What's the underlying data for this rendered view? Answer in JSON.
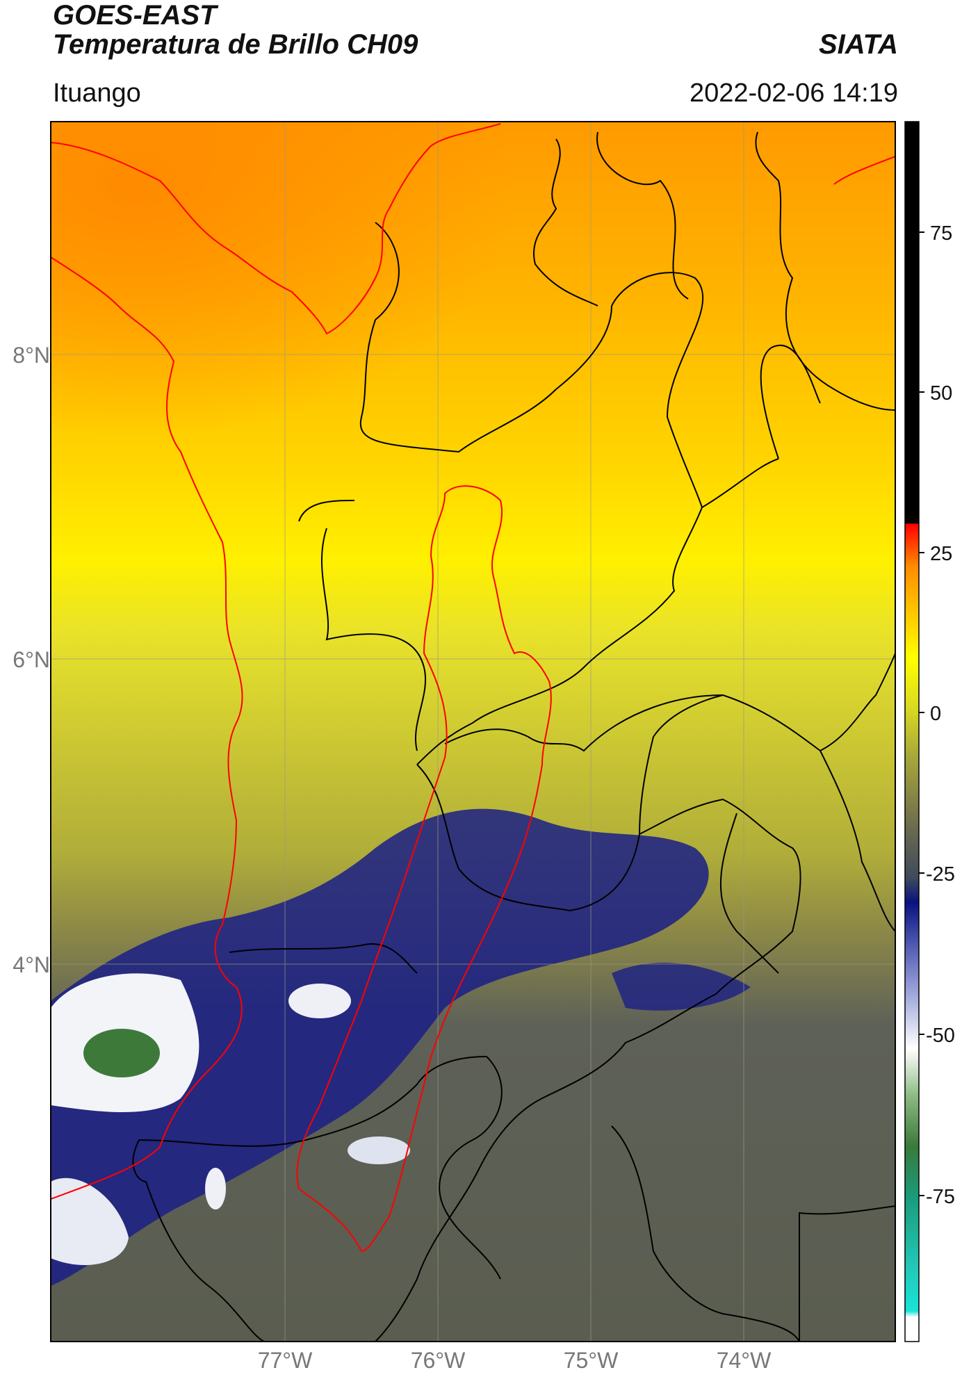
{
  "header": {
    "title_line1": "GOES-EAST",
    "title_line2": "Temperatura de Brillo CH09",
    "organization": "SIATA",
    "region": "Ituango",
    "datetime": "2022-02-06 14:19"
  },
  "map": {
    "lat_ticks": [
      "8°N",
      "6°N",
      "4°N"
    ],
    "lon_ticks": [
      "77°W",
      "76°W",
      "75°W",
      "74°W"
    ],
    "colors": {
      "orange": "#ff8c00",
      "yellow": "#ffe800",
      "olive": "#b7b43a",
      "gray": "#5e6158",
      "navy": "#1a1f86",
      "white": "#f2f4f8",
      "green": "#3d7a3a",
      "border": "#000000",
      "basin": "#ff0000"
    }
  },
  "colorbar": {
    "tick_labels": [
      "75",
      "50",
      "25",
      "0",
      "-25",
      "-50",
      "-75"
    ],
    "stops": [
      "#ffffff",
      "#19e3d8",
      "#1a9a7a",
      "#3a7a3a",
      "#c8e0c0",
      "#ffffff",
      "#6a74c0",
      "#0a1280",
      "#3e4a5c",
      "#8a8a45",
      "#d8d820",
      "#ffff00",
      "#ff8c00",
      "#ff3c00",
      "#ff0000",
      "#000000"
    ]
  }
}
